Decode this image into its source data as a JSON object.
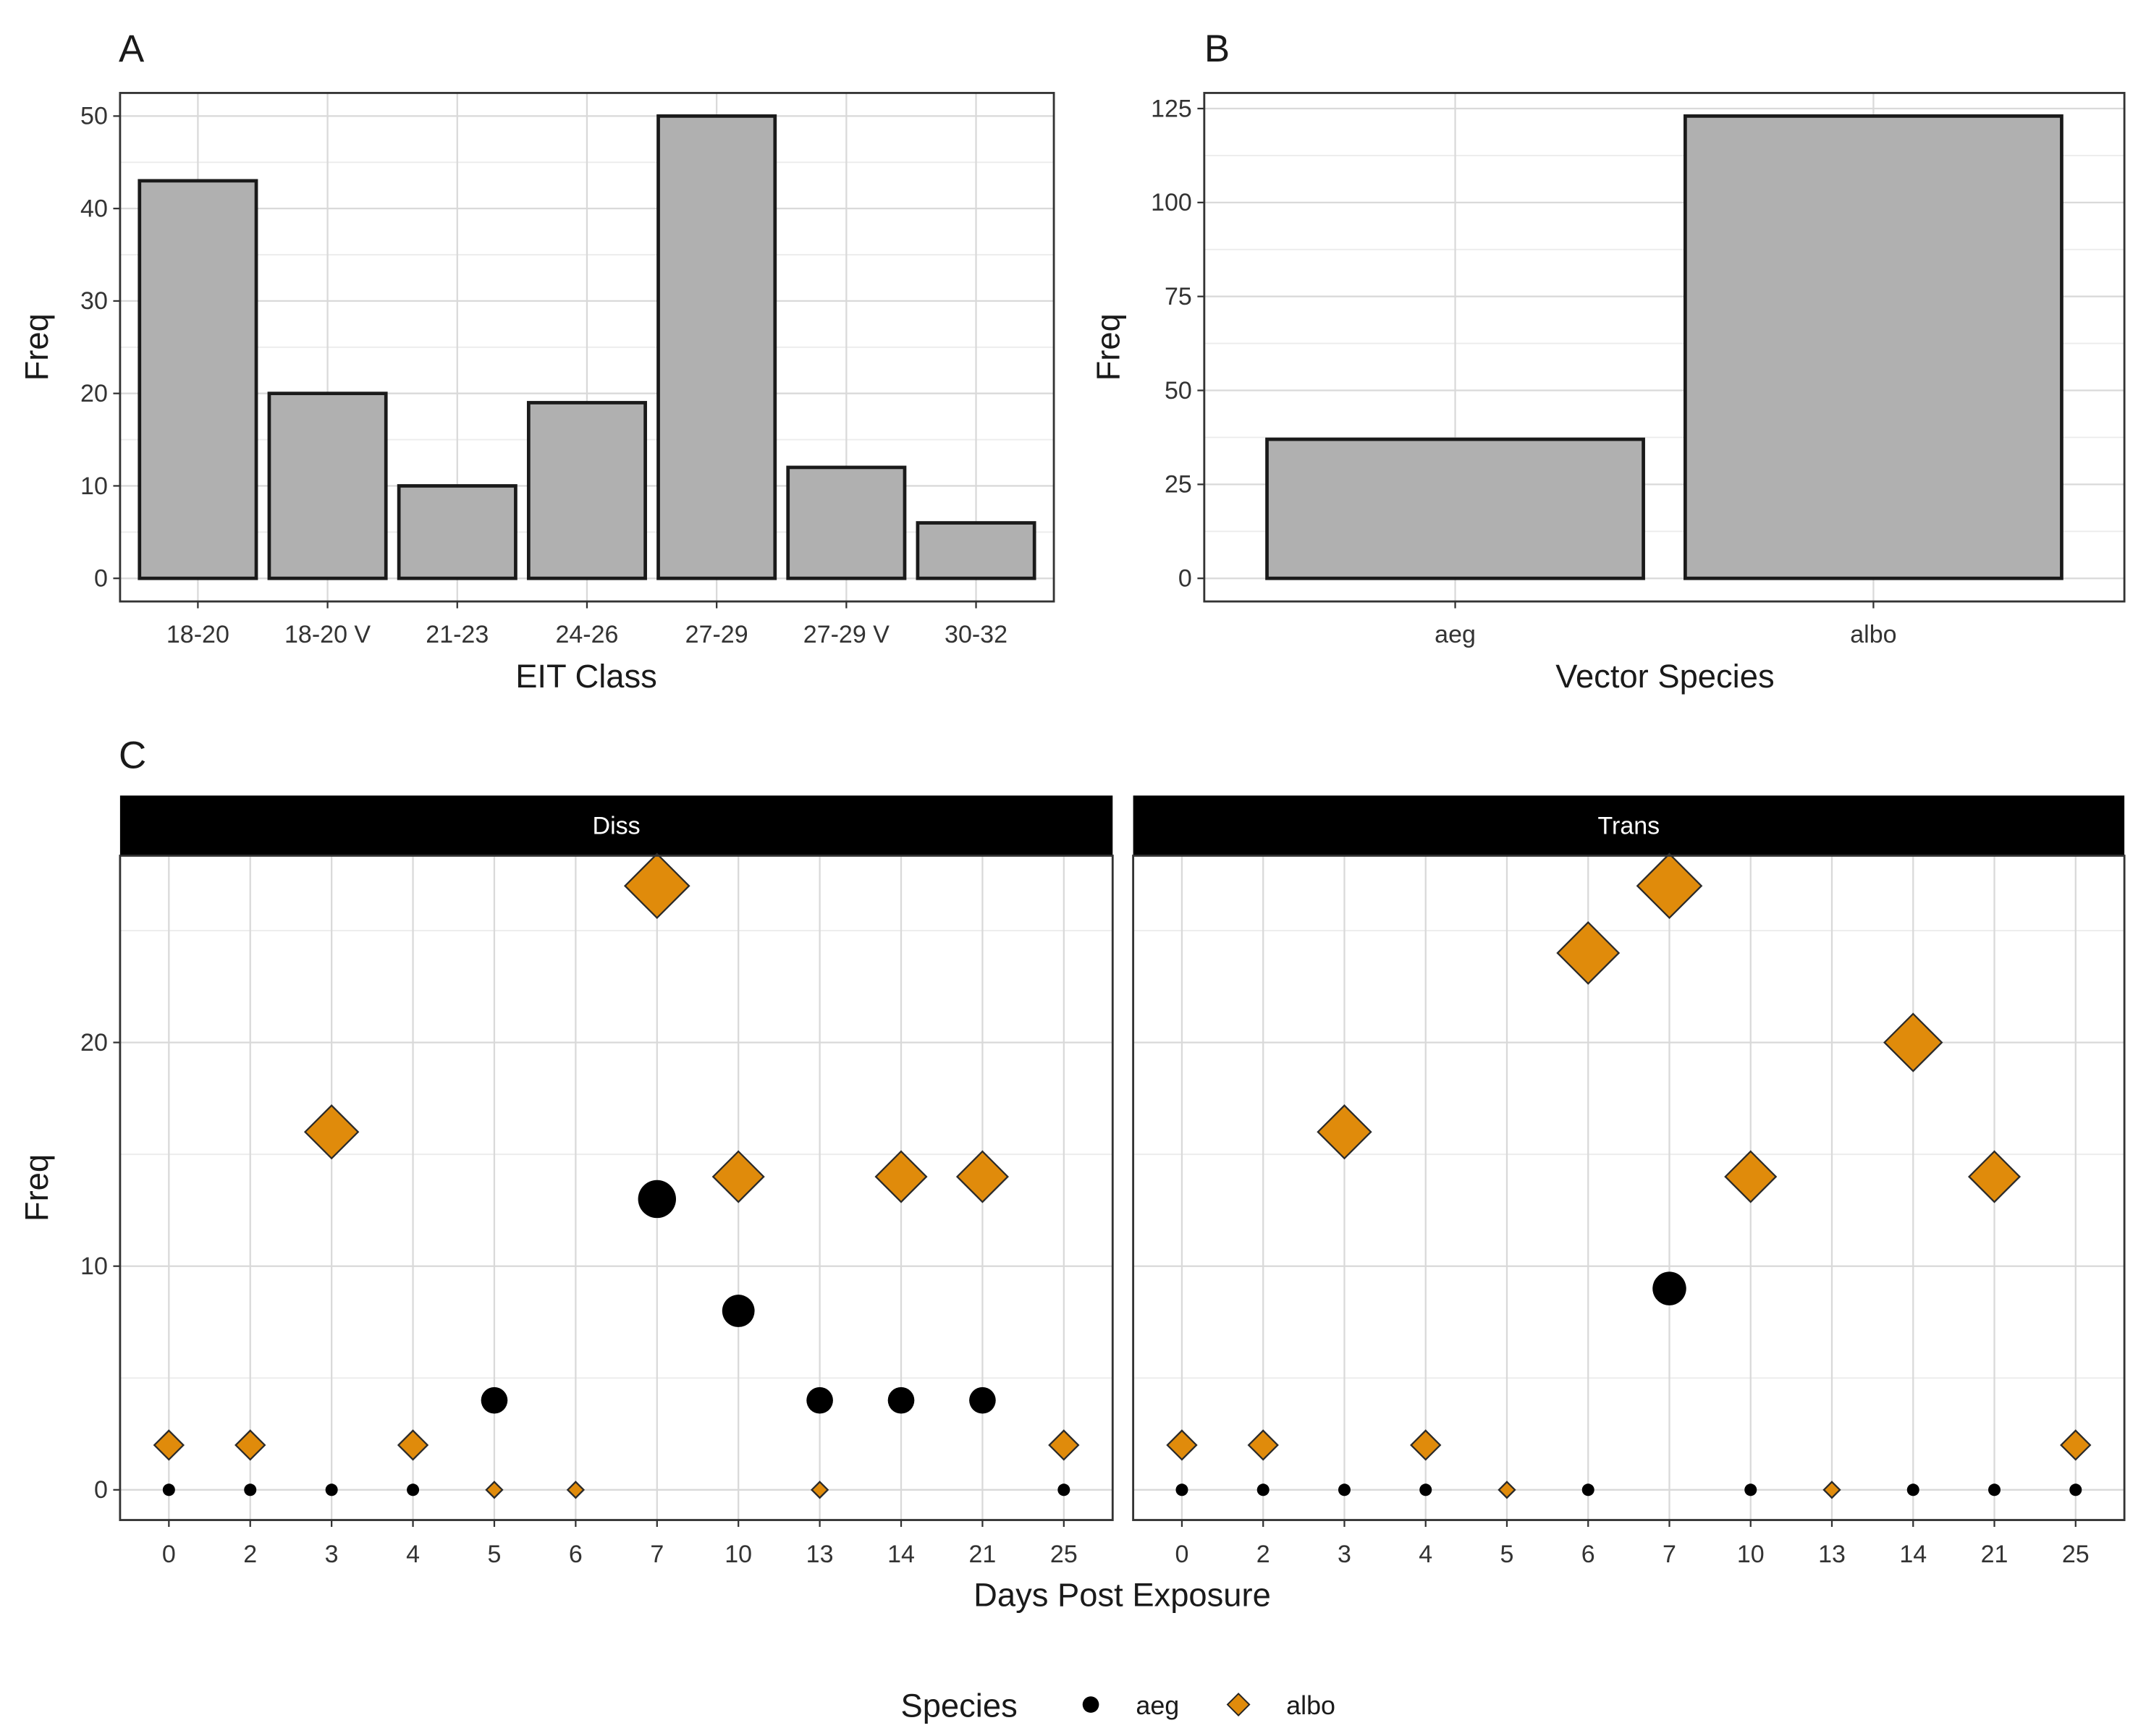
{
  "colors": {
    "bar_fill": "#b0b0b0",
    "albo": "#e08b0b",
    "aeg": "#000000",
    "strip": "#000000",
    "grid": "#d9d9d9"
  },
  "chart_data": [
    {
      "panel": "A",
      "type": "bar",
      "xlabel": "EIT Class",
      "ylabel": "Freq",
      "categories": [
        "18-20",
        "18-20 V",
        "21-23",
        "24-26",
        "27-29",
        "27-29 V",
        "30-32"
      ],
      "values": [
        43,
        20,
        10,
        19,
        50,
        12,
        6
      ],
      "yticks": [
        0,
        10,
        20,
        30,
        40,
        50
      ],
      "ylim": [
        -2.5,
        52.5
      ],
      "grid": true
    },
    {
      "panel": "B",
      "type": "bar",
      "xlabel": "Vector Species",
      "ylabel": "Freq",
      "categories": [
        "aeg",
        "albo"
      ],
      "values": [
        37,
        123
      ],
      "yticks": [
        0,
        25,
        50,
        75,
        100,
        125
      ],
      "ylim": [
        -6.15,
        129.15
      ],
      "grid": true
    },
    {
      "panel": "C",
      "type": "scatter",
      "xlabel": "Days Post Exposure",
      "ylabel": "Freq",
      "categories": [
        "0",
        "2",
        "3",
        "4",
        "5",
        "6",
        "7",
        "10",
        "13",
        "14",
        "21",
        "25"
      ],
      "yticks": [
        0,
        10,
        20
      ],
      "ylim": [
        -1.35,
        28.35
      ],
      "grid": true,
      "legend": {
        "title": "Species",
        "position": "bottom",
        "entries": [
          {
            "name": "aeg",
            "shape": "circle"
          },
          {
            "name": "albo",
            "shape": "diamond"
          }
        ]
      },
      "facets": [
        {
          "label": "Diss",
          "series": [
            {
              "name": "aeg",
              "x": [
                "0",
                "2",
                "3",
                "4",
                "5",
                "7",
                "10",
                "13",
                "14",
                "21",
                "25"
              ],
              "y": [
                0,
                0,
                0,
                0,
                4,
                13,
                8,
                4,
                4,
                4,
                0
              ]
            },
            {
              "name": "albo",
              "x": [
                "0",
                "2",
                "3",
                "4",
                "5",
                "6",
                "7",
                "10",
                "13",
                "14",
                "21",
                "25"
              ],
              "y": [
                2,
                2,
                16,
                2,
                0,
                0,
                27,
                14,
                0,
                14,
                14,
                2
              ]
            }
          ]
        },
        {
          "label": "Trans",
          "series": [
            {
              "name": "aeg",
              "x": [
                "0",
                "2",
                "3",
                "4",
                "6",
                "7",
                "10",
                "14",
                "21",
                "25"
              ],
              "y": [
                0,
                0,
                0,
                0,
                0,
                9,
                0,
                0,
                0,
                0
              ]
            },
            {
              "name": "albo",
              "x": [
                "0",
                "2",
                "3",
                "4",
                "5",
                "6",
                "7",
                "10",
                "13",
                "14",
                "21",
                "25"
              ],
              "y": [
                2,
                2,
                16,
                2,
                0,
                24,
                27,
                14,
                0,
                20,
                14,
                2
              ]
            }
          ]
        }
      ]
    }
  ]
}
